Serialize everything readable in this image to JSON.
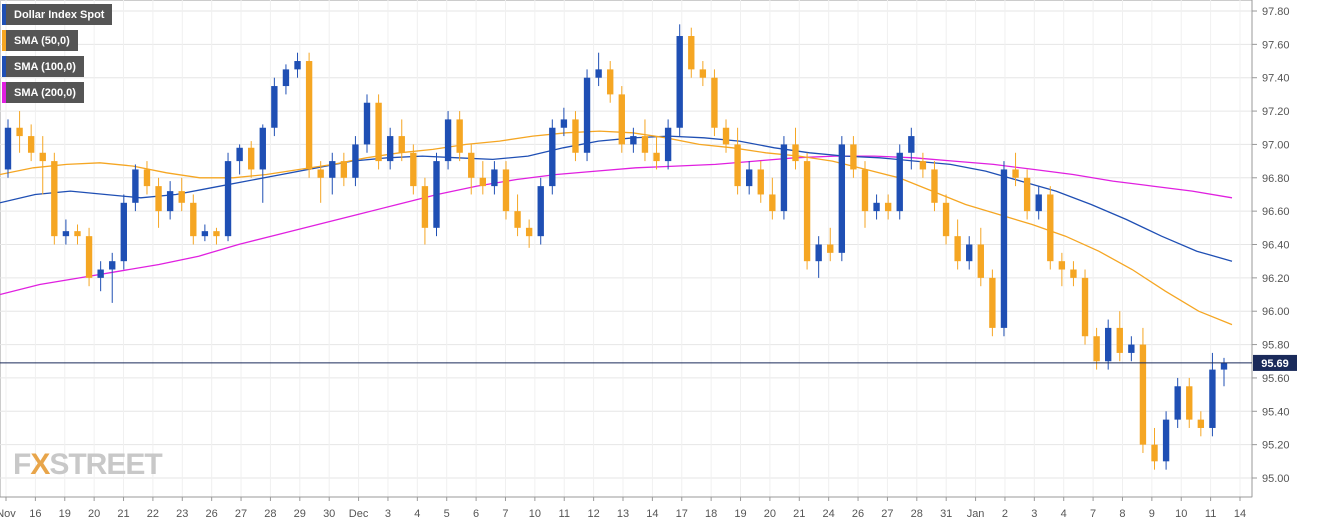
{
  "chart_data": {
    "type": "candlestick",
    "title": "Dollar Index Spot",
    "y_ticks": [
      "97.80",
      "97.60",
      "97.40",
      "97.20",
      "97.00",
      "96.80",
      "96.60",
      "96.40",
      "96.20",
      "96.00",
      "95.80",
      "95.60",
      "95.40",
      "95.20",
      "95.00"
    ],
    "ylim": [
      94.88,
      97.86
    ],
    "x_ticks": [
      "Nov",
      "16",
      "19",
      "20",
      "21",
      "22",
      "23",
      "26",
      "27",
      "28",
      "29",
      "30",
      "Dec",
      "3",
      "4",
      "5",
      "6",
      "7",
      "10",
      "11",
      "12",
      "13",
      "14",
      "17",
      "18",
      "19",
      "20",
      "21",
      "24",
      "26",
      "27",
      "28",
      "31",
      "Jan",
      "2",
      "3",
      "4",
      "7",
      "8",
      "9",
      "10",
      "11",
      "14"
    ],
    "last_price": "95.69",
    "last_price_value": 95.69,
    "colors": {
      "up": "#1f4fb4",
      "down": "#f5a623",
      "sma50": "#f5a623",
      "sma100": "#1f4fb4",
      "sma200": "#e020e0"
    },
    "legend": [
      {
        "label": "Dollar Index Spot",
        "color": "#1f4fb4"
      },
      {
        "label": "SMA (50,0)",
        "color": "#f5a623"
      },
      {
        "label": "SMA (100,0)",
        "color": "#1f4fb4"
      },
      {
        "label": "SMA (200,0)",
        "color": "#e020e0"
      }
    ],
    "candles": [
      [
        96.85,
        97.15,
        96.8,
        97.1
      ],
      [
        97.1,
        97.2,
        96.95,
        97.05
      ],
      [
        97.05,
        97.12,
        96.9,
        96.95
      ],
      [
        96.95,
        97.05,
        96.7,
        96.9
      ],
      [
        96.9,
        96.95,
        96.4,
        96.45
      ],
      [
        96.45,
        96.55,
        96.4,
        96.48
      ],
      [
        96.48,
        96.52,
        96.4,
        96.45
      ],
      [
        96.45,
        96.5,
        96.15,
        96.2
      ],
      [
        96.2,
        96.3,
        96.12,
        96.25
      ],
      [
        96.25,
        96.35,
        96.05,
        96.3
      ],
      [
        96.3,
        96.7,
        96.25,
        96.65
      ],
      [
        96.65,
        96.88,
        96.6,
        96.85
      ],
      [
        96.85,
        96.9,
        96.7,
        96.75
      ],
      [
        96.75,
        96.8,
        96.5,
        96.6
      ],
      [
        96.6,
        96.78,
        96.55,
        96.72
      ],
      [
        96.72,
        96.8,
        96.6,
        96.65
      ],
      [
        96.65,
        96.7,
        96.4,
        96.45
      ],
      [
        96.45,
        96.52,
        96.42,
        96.48
      ],
      [
        96.48,
        96.5,
        96.4,
        96.45
      ],
      [
        96.45,
        96.95,
        96.42,
        96.9
      ],
      [
        96.9,
        97.0,
        96.82,
        96.98
      ],
      [
        96.98,
        97.02,
        96.8,
        96.85
      ],
      [
        96.85,
        97.12,
        96.65,
        97.1
      ],
      [
        97.1,
        97.4,
        97.05,
        97.35
      ],
      [
        97.35,
        97.48,
        97.3,
        97.45
      ],
      [
        97.45,
        97.55,
        97.4,
        97.5
      ],
      [
        97.5,
        97.55,
        96.8,
        96.85
      ],
      [
        96.85,
        96.9,
        96.65,
        96.8
      ],
      [
        96.8,
        96.95,
        96.7,
        96.9
      ],
      [
        96.9,
        96.95,
        96.75,
        96.8
      ],
      [
        96.8,
        97.05,
        96.75,
        97.0
      ],
      [
        97.0,
        97.3,
        96.95,
        97.25
      ],
      [
        97.25,
        97.3,
        96.85,
        96.9
      ],
      [
        96.9,
        97.1,
        96.85,
        97.05
      ],
      [
        97.05,
        97.15,
        96.9,
        96.95
      ],
      [
        96.95,
        97.0,
        96.7,
        96.75
      ],
      [
        96.75,
        96.8,
        96.4,
        96.5
      ],
      [
        96.5,
        96.95,
        96.45,
        96.9
      ],
      [
        96.9,
        97.2,
        96.85,
        97.15
      ],
      [
        97.15,
        97.2,
        96.9,
        96.95
      ],
      [
        96.95,
        97.0,
        96.7,
        96.8
      ],
      [
        96.8,
        96.9,
        96.7,
        96.75
      ],
      [
        96.75,
        96.9,
        96.7,
        96.85
      ],
      [
        96.85,
        96.9,
        96.55,
        96.6
      ],
      [
        96.6,
        96.7,
        96.45,
        96.5
      ],
      [
        96.5,
        96.55,
        96.38,
        96.45
      ],
      [
        96.45,
        96.8,
        96.4,
        96.75
      ],
      [
        96.75,
        97.15,
        96.7,
        97.1
      ],
      [
        97.1,
        97.22,
        97.05,
        97.15
      ],
      [
        97.15,
        97.2,
        96.9,
        96.95
      ],
      [
        96.95,
        97.45,
        96.9,
        97.4
      ],
      [
        97.4,
        97.55,
        97.35,
        97.45
      ],
      [
        97.45,
        97.5,
        97.25,
        97.3
      ],
      [
        97.3,
        97.35,
        96.95,
        97.0
      ],
      [
        97.0,
        97.1,
        96.95,
        97.05
      ],
      [
        97.05,
        97.15,
        96.9,
        96.95
      ],
      [
        96.95,
        97.05,
        96.85,
        96.9
      ],
      [
        96.9,
        97.15,
        96.85,
        97.1
      ],
      [
        97.1,
        97.72,
        97.05,
        97.65
      ],
      [
        97.65,
        97.7,
        97.4,
        97.45
      ],
      [
        97.45,
        97.5,
        97.35,
        97.4
      ],
      [
        97.4,
        97.45,
        97.05,
        97.1
      ],
      [
        97.1,
        97.15,
        96.95,
        97.0
      ],
      [
        97.0,
        97.1,
        96.7,
        96.75
      ],
      [
        96.75,
        96.9,
        96.7,
        96.85
      ],
      [
        96.85,
        96.9,
        96.65,
        96.7
      ],
      [
        96.7,
        96.8,
        96.55,
        96.6
      ],
      [
        96.6,
        97.05,
        96.55,
        97.0
      ],
      [
        97.0,
        97.1,
        96.85,
        96.9
      ],
      [
        96.9,
        96.95,
        96.25,
        96.3
      ],
      [
        96.3,
        96.45,
        96.2,
        96.4
      ],
      [
        96.4,
        96.5,
        96.3,
        96.35
      ],
      [
        96.35,
        97.05,
        96.3,
        97.0
      ],
      [
        97.0,
        97.05,
        96.8,
        96.85
      ],
      [
        96.85,
        96.9,
        96.5,
        96.6
      ],
      [
        96.6,
        96.7,
        96.55,
        96.65
      ],
      [
        96.65,
        96.7,
        96.55,
        96.6
      ],
      [
        96.6,
        97.0,
        96.55,
        96.95
      ],
      [
        96.95,
        97.1,
        96.85,
        97.05
      ],
      [
        96.9,
        96.95,
        96.8,
        96.85
      ],
      [
        96.85,
        96.9,
        96.6,
        96.65
      ],
      [
        96.65,
        96.7,
        96.4,
        96.45
      ],
      [
        96.45,
        96.55,
        96.25,
        96.3
      ],
      [
        96.3,
        96.45,
        96.25,
        96.4
      ],
      [
        96.4,
        96.5,
        96.15,
        96.2
      ],
      [
        96.2,
        96.25,
        95.85,
        95.9
      ],
      [
        95.9,
        96.9,
        95.85,
        96.85
      ],
      [
        96.85,
        96.95,
        96.75,
        96.8
      ],
      [
        96.8,
        96.85,
        96.55,
        96.6
      ],
      [
        96.6,
        96.75,
        96.55,
        96.7
      ],
      [
        96.7,
        96.75,
        96.25,
        96.3
      ],
      [
        96.3,
        96.35,
        96.15,
        96.25
      ],
      [
        96.25,
        96.3,
        96.15,
        96.2
      ],
      [
        96.2,
        96.25,
        95.8,
        95.85
      ],
      [
        95.85,
        95.9,
        95.65,
        95.7
      ],
      [
        95.7,
        95.95,
        95.65,
        95.9
      ],
      [
        95.9,
        96.0,
        95.7,
        95.75
      ],
      [
        95.75,
        95.85,
        95.7,
        95.8
      ],
      [
        95.8,
        95.9,
        95.15,
        95.2
      ],
      [
        95.2,
        95.3,
        95.05,
        95.1
      ],
      [
        95.1,
        95.4,
        95.05,
        95.35
      ],
      [
        95.35,
        95.6,
        95.3,
        95.55
      ],
      [
        95.55,
        95.6,
        95.3,
        95.35
      ],
      [
        95.35,
        95.4,
        95.25,
        95.3
      ],
      [
        95.3,
        95.75,
        95.25,
        95.65
      ],
      [
        95.65,
        95.72,
        95.55,
        95.69
      ]
    ],
    "sma50": [
      96.82,
      96.86,
      96.88,
      96.89,
      96.87,
      96.83,
      96.8,
      96.8,
      96.82,
      96.85,
      96.88,
      96.92,
      96.95,
      96.97,
      97.0,
      97.02,
      97.05,
      97.07,
      97.08,
      97.07,
      97.04,
      97.0,
      96.98,
      96.95,
      96.93,
      96.9,
      96.85,
      96.8,
      96.72,
      96.64,
      96.58,
      96.52,
      96.45,
      96.36,
      96.25,
      96.12,
      96.0,
      95.92
    ],
    "sma100": [
      96.65,
      96.7,
      96.72,
      96.7,
      96.68,
      96.7,
      96.74,
      96.78,
      96.82,
      96.86,
      96.9,
      96.92,
      96.93,
      96.92,
      96.91,
      96.93,
      96.98,
      97.02,
      97.04,
      97.05,
      97.04,
      97.02,
      96.98,
      96.95,
      96.93,
      96.92,
      96.9,
      96.88,
      96.84,
      96.78,
      96.72,
      96.64,
      96.55,
      96.45,
      96.36,
      96.3
    ],
    "sma200": [
      96.1,
      96.16,
      96.2,
      96.24,
      96.28,
      96.33,
      96.4,
      96.46,
      96.52,
      96.58,
      96.64,
      96.7,
      96.75,
      96.79,
      96.82,
      96.84,
      96.86,
      96.87,
      96.88,
      96.9,
      96.92,
      96.93,
      96.93,
      96.92,
      96.9,
      96.88,
      96.85,
      96.82,
      96.78,
      96.75,
      96.72,
      96.68
    ]
  }
}
